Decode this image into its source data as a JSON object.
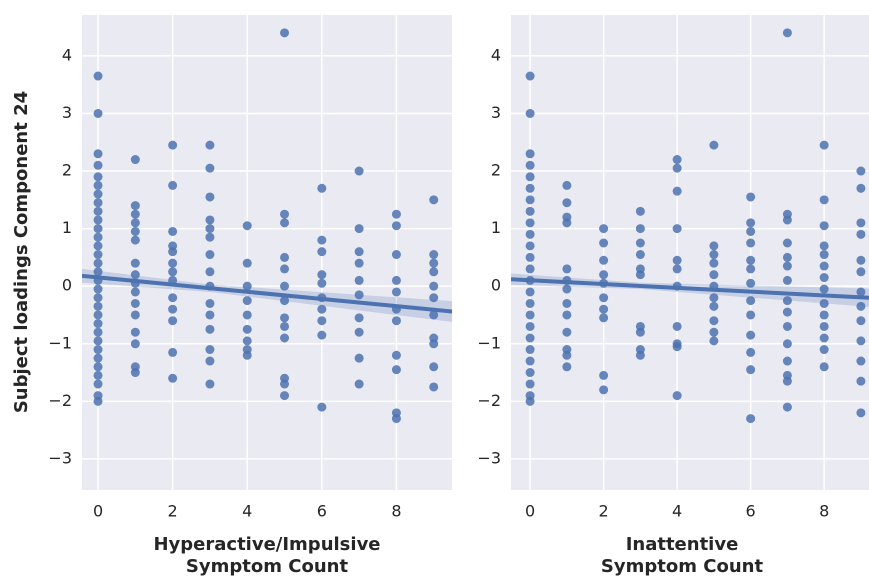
{
  "chart_data": [
    {
      "type": "scatter",
      "ylabel": "Subject loadings Component 24",
      "xlabel": [
        "Hyperactive/Impulsive",
        "Symptom Count"
      ],
      "color": "#4c72b0",
      "grid": true,
      "xlim": [
        -0.43,
        9.49
      ],
      "ylim": [
        -3.54,
        4.71
      ],
      "xticks": [
        0,
        2,
        4,
        6,
        8
      ],
      "yticks": [
        {
          "value": -3,
          "label": "−3"
        },
        {
          "value": -2,
          "label": "−2"
        },
        {
          "value": -1,
          "label": "−1"
        },
        0,
        1,
        2,
        3,
        4
      ],
      "points": [
        {
          "x": 0,
          "y": [
            3.65,
            3.0,
            2.3,
            2.1,
            1.9,
            1.75,
            1.6,
            1.45,
            1.3,
            1.15,
            1.0,
            0.85,
            0.7,
            0.55,
            0.4,
            0.25,
            0.1,
            -0.05,
            -0.2,
            -0.35,
            -0.5,
            -0.65,
            -0.8,
            -0.95,
            -1.1,
            -1.25,
            -1.4,
            -1.55,
            -1.7,
            -1.9,
            -2.0
          ]
        },
        {
          "x": 1,
          "y": [
            2.2,
            1.4,
            1.25,
            1.1,
            0.95,
            0.8,
            0.4,
            0.2,
            0.05,
            -0.1,
            -0.3,
            -0.5,
            -0.8,
            -1.0,
            -1.4,
            -1.5
          ]
        },
        {
          "x": 2,
          "y": [
            2.45,
            1.75,
            0.95,
            0.7,
            0.6,
            0.4,
            0.25,
            0.1,
            -0.2,
            -0.4,
            -0.6,
            -1.15,
            -1.6
          ]
        },
        {
          "x": 3,
          "y": [
            2.45,
            2.05,
            1.55,
            1.15,
            1.0,
            0.85,
            0.55,
            0.25,
            0.0,
            -0.3,
            -0.5,
            -0.75,
            -1.1,
            -1.3,
            -1.7
          ]
        },
        {
          "x": 4,
          "y": [
            1.05,
            0.4,
            0.0,
            -0.25,
            -0.5,
            -0.75,
            -0.95,
            -1.1,
            -1.2
          ]
        },
        {
          "x": 5,
          "y": [
            4.4,
            1.25,
            1.1,
            0.5,
            0.3,
            0.0,
            -0.25,
            -0.55,
            -0.7,
            -0.9,
            -1.6,
            -1.7,
            -1.9
          ]
        },
        {
          "x": 6,
          "y": [
            1.7,
            0.8,
            0.6,
            0.2,
            0.05,
            -0.2,
            -0.4,
            -0.6,
            -0.85,
            -2.1
          ]
        },
        {
          "x": 7,
          "y": [
            2.0,
            1.0,
            0.6,
            0.4,
            0.1,
            -0.15,
            -0.55,
            -0.8,
            -1.25,
            -1.7
          ]
        },
        {
          "x": 8,
          "y": [
            1.25,
            1.05,
            0.55,
            0.1,
            -0.1,
            -0.4,
            -0.6,
            -1.2,
            -1.45,
            -2.2,
            -2.3
          ]
        },
        {
          "x": 9,
          "y": [
            1.5,
            0.55,
            0.4,
            0.25,
            0.0,
            -0.2,
            -0.5,
            -0.9,
            -1.0,
            -1.4,
            -1.75
          ]
        }
      ],
      "regression": {
        "x": [
          -0.43,
          3,
          9.49
        ],
        "y": [
          0.18,
          -0.035,
          -0.44
        ],
        "ci_lower": [
          0.06,
          -0.1,
          -0.62
        ],
        "ci_upper": [
          0.3,
          0.03,
          -0.26
        ]
      }
    },
    {
      "type": "scatter",
      "xlabel": [
        "Inattentive",
        "Symptom Count"
      ],
      "color": "#4c72b0",
      "grid": true,
      "xlim": [
        -0.52,
        9.22
      ],
      "ylim": [
        -3.54,
        4.71
      ],
      "xticks": [
        0,
        2,
        4,
        6,
        8
      ],
      "yticks": [
        {
          "value": -3,
          "label": "−3"
        },
        {
          "value": -2,
          "label": "−2"
        },
        {
          "value": -1,
          "label": "−1"
        },
        0,
        1,
        2,
        3,
        4
      ],
      "points": [
        {
          "x": 0,
          "y": [
            3.65,
            3.0,
            2.3,
            2.1,
            1.9,
            1.7,
            1.5,
            1.3,
            1.1,
            0.9,
            0.7,
            0.5,
            0.3,
            0.1,
            -0.1,
            -0.3,
            -0.5,
            -0.7,
            -0.9,
            -1.1,
            -1.3,
            -1.5,
            -1.7,
            -1.9,
            -2.0
          ]
        },
        {
          "x": 1,
          "y": [
            1.75,
            1.45,
            1.2,
            1.1,
            0.3,
            0.1,
            -0.05,
            -0.3,
            -0.5,
            -0.8,
            -1.1,
            -1.2,
            -1.4
          ]
        },
        {
          "x": 2,
          "y": [
            1.0,
            0.75,
            0.45,
            0.2,
            0.05,
            -0.2,
            -0.4,
            -0.55,
            -1.55,
            -1.8
          ]
        },
        {
          "x": 3,
          "y": [
            1.3,
            1.0,
            0.75,
            0.55,
            0.3,
            0.2,
            -0.7,
            -0.8,
            -1.1,
            -1.2
          ]
        },
        {
          "x": 4,
          "y": [
            2.2,
            2.05,
            1.65,
            1.0,
            0.45,
            0.3,
            0.0,
            -0.7,
            -1.0,
            -1.05,
            -1.9
          ]
        },
        {
          "x": 5,
          "y": [
            2.45,
            0.7,
            0.55,
            0.4,
            0.2,
            0.0,
            -0.2,
            -0.35,
            -0.6,
            -0.8,
            -0.95
          ]
        },
        {
          "x": 6,
          "y": [
            1.55,
            1.1,
            0.95,
            0.75,
            0.45,
            0.3,
            0.05,
            -0.25,
            -0.5,
            -0.85,
            -1.15,
            -1.45,
            -2.3
          ]
        },
        {
          "x": 7,
          "y": [
            4.4,
            1.25,
            1.15,
            0.75,
            0.5,
            0.35,
            0.1,
            -0.25,
            -0.45,
            -0.7,
            -1.0,
            -1.3,
            -1.55,
            -1.65,
            -2.1
          ]
        },
        {
          "x": 8,
          "y": [
            2.45,
            1.5,
            1.05,
            0.7,
            0.55,
            0.35,
            0.15,
            -0.05,
            -0.3,
            -0.5,
            -0.7,
            -0.9,
            -1.1,
            -1.4
          ]
        },
        {
          "x": 9,
          "y": [
            2.0,
            1.7,
            1.1,
            0.9,
            0.45,
            0.25,
            -0.1,
            -0.35,
            -0.6,
            -0.95,
            -1.3,
            -1.65,
            -2.2
          ]
        }
      ],
      "regression": {
        "x": [
          -0.52,
          3,
          9.22
        ],
        "y": [
          0.12,
          0.004,
          -0.2
        ],
        "ci_lower": [
          0.02,
          -0.05,
          -0.36
        ],
        "ci_upper": [
          0.22,
          0.06,
          -0.04
        ]
      }
    }
  ]
}
